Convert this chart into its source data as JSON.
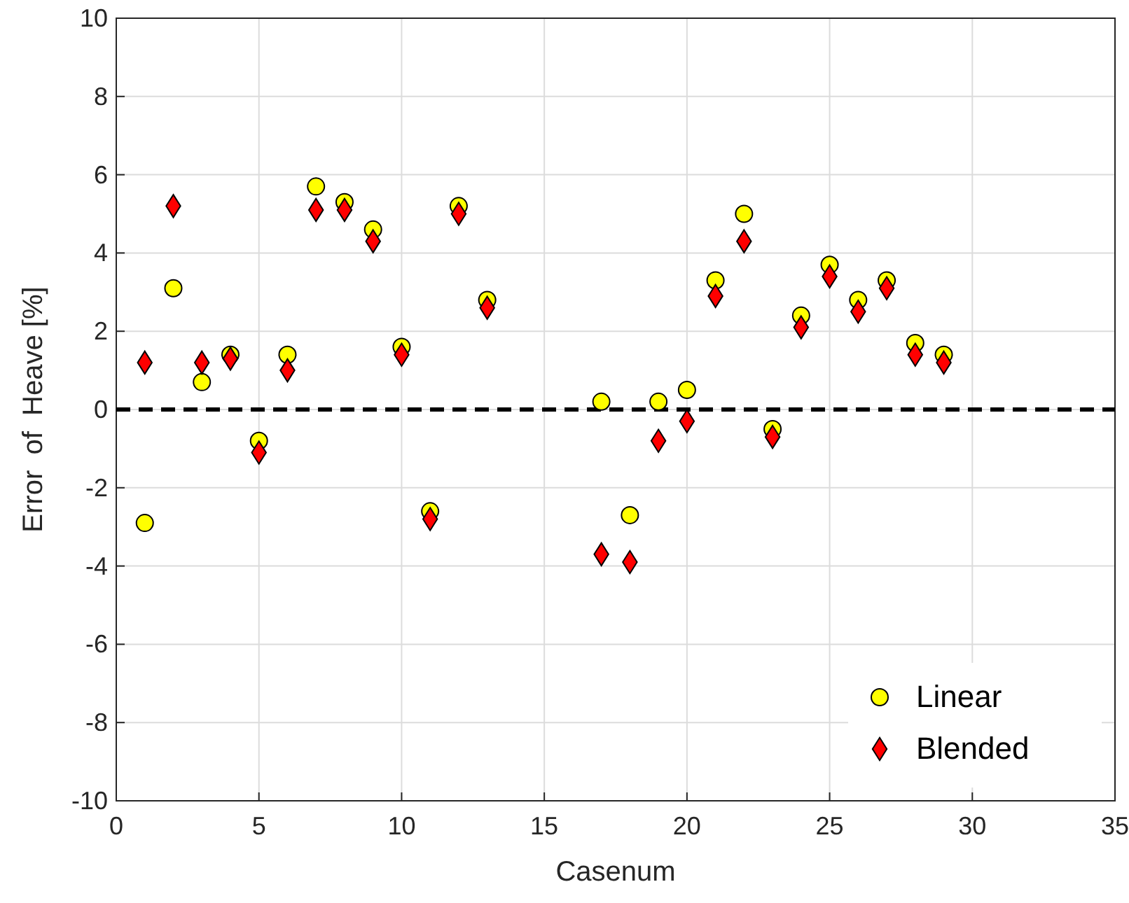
{
  "chart_data": {
    "type": "scatter",
    "xlabel": "Casenum",
    "ylabel": "Error  of  Heave [%]",
    "xlim": [
      0,
      35
    ],
    "ylim": [
      -10,
      10
    ],
    "xticks": [
      0,
      5,
      10,
      15,
      20,
      25,
      30,
      35
    ],
    "yticks": [
      -10,
      -8,
      -6,
      -4,
      -2,
      0,
      2,
      4,
      6,
      8,
      10
    ],
    "grid": true,
    "legend": "bottom right",
    "x": [
      1,
      2,
      3,
      4,
      5,
      6,
      7,
      8,
      9,
      10,
      11,
      12,
      13,
      17,
      18,
      19,
      20,
      21,
      22,
      23,
      24,
      25,
      26,
      27,
      28,
      29
    ],
    "series": [
      {
        "name": "Linear",
        "color": "#ffff00",
        "marker": "circle",
        "values": [
          -2.9,
          3.1,
          0.7,
          1.4,
          -0.8,
          1.4,
          5.7,
          5.3,
          4.6,
          1.6,
          -2.6,
          5.2,
          2.8,
          0.2,
          -2.7,
          0.2,
          0.5,
          3.3,
          5.0,
          -0.5,
          2.4,
          3.7,
          2.8,
          3.3,
          1.7,
          1.4
        ]
      },
      {
        "name": "Blended",
        "color": "#ff0000",
        "marker": "diamond",
        "values": [
          1.2,
          5.2,
          1.2,
          1.3,
          -1.1,
          1.0,
          5.1,
          5.1,
          4.3,
          1.4,
          -2.8,
          5.0,
          2.6,
          -3.7,
          -3.9,
          -0.8,
          -0.3,
          2.9,
          4.3,
          -0.7,
          2.1,
          3.4,
          2.5,
          3.1,
          1.4,
          1.2
        ]
      }
    ],
    "ref_lines": [
      {
        "axis": "y",
        "value": 0,
        "color": "#000000",
        "line_style": "dashed"
      }
    ]
  }
}
